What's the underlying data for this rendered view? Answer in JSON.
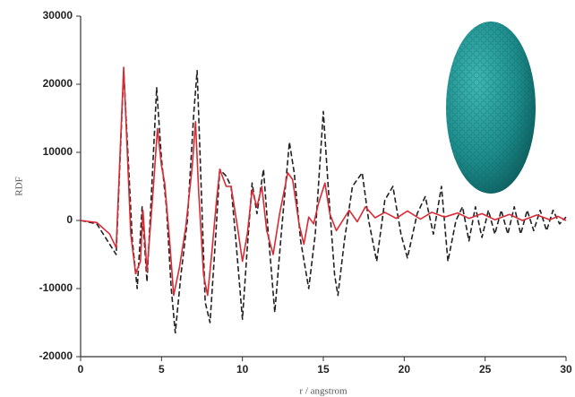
{
  "chart_data": {
    "type": "line",
    "y_label": "RDF",
    "x_label": "r / angstrom",
    "xlim": [
      0,
      30
    ],
    "xticks": [
      0,
      5,
      10,
      15,
      20,
      25,
      30
    ],
    "ylim": [
      -20000,
      30000
    ],
    "yticks": [
      -20000,
      -10000,
      0,
      10000,
      20000,
      30000
    ],
    "series": [
      {
        "color": "#222222",
        "dash": true,
        "x": [
          0,
          1,
          1.8,
          2.2,
          2.66,
          3.2,
          3.5,
          3.8,
          4.1,
          4.4,
          4.7,
          5.0,
          5.3,
          5.6,
          5.85,
          6.2,
          6.6,
          7.0,
          7.2,
          7.45,
          7.7,
          8.0,
          8.3,
          8.6,
          9.0,
          9.3,
          9.6,
          10.0,
          10.3,
          10.6,
          10.9,
          11.3,
          11.6,
          12.0,
          12.4,
          12.9,
          13.2,
          13.6,
          14.1,
          14.5,
          15.0,
          15.3,
          15.7,
          15.9,
          16.3,
          16.8,
          17.4,
          17.8,
          18.3,
          18.8,
          19.3,
          19.8,
          20.2,
          20.8,
          21.3,
          21.8,
          22.3,
          22.7,
          23.2,
          23.6,
          24,
          24.4,
          24.8,
          25.2,
          25.6,
          26,
          26.4,
          26.8,
          27.2,
          27.6,
          28,
          28.4,
          28.8,
          29.2,
          29.6,
          30
        ],
        "values": [
          0,
          -500,
          -3500,
          -5000,
          22000,
          -3000,
          -10000,
          2000,
          -9000,
          5000,
          19500,
          9000,
          2000,
          -10000,
          -16500,
          -8000,
          0,
          16000,
          22000,
          5000,
          -12000,
          -15000,
          -4000,
          7500,
          6500,
          5000,
          -3000,
          -14500,
          -4000,
          5500,
          1000,
          7500,
          -2000,
          -13500,
          -2000,
          11500,
          7000,
          -3000,
          -10000,
          -2000,
          16000,
          5000,
          -8000,
          -11000,
          -3000,
          5000,
          7000,
          0,
          -6000,
          3000,
          5000,
          -2000,
          -5500,
          1000,
          3500,
          -2000,
          5000,
          -6000,
          0,
          2000,
          -3000,
          2000,
          -2500,
          1500,
          -2000,
          1500,
          -2000,
          2000,
          -2000,
          1500,
          -1500,
          1500,
          -1500,
          1500,
          -500,
          500
        ]
      },
      {
        "color": "#d92b35",
        "dash": false,
        "x": [
          0,
          1,
          1.8,
          2.2,
          2.66,
          3.1,
          3.4,
          3.7,
          3.85,
          4.1,
          4.5,
          4.75,
          5.0,
          5.2,
          5.5,
          5.75,
          6.1,
          6.5,
          6.9,
          7.1,
          7.3,
          7.6,
          7.85,
          8.1,
          8.4,
          8.6,
          9.0,
          9.3,
          9.7,
          10.0,
          10.3,
          10.6,
          10.9,
          11.2,
          11.5,
          11.9,
          12.3,
          12.8,
          13.1,
          13.5,
          13.8,
          14.1,
          14.4,
          14.7,
          15.1,
          15.4,
          15.8,
          16.2,
          16.6,
          17.1,
          17.6,
          18.2,
          18.8,
          19.5,
          20.2,
          21,
          21.7,
          22.5,
          23.3,
          24,
          24.8,
          25.6,
          26.5,
          27.3,
          28.2,
          29,
          29.5,
          30
        ],
        "values": [
          0,
          -300,
          -2000,
          -4000,
          22500,
          -2000,
          -7800,
          -6000,
          1500,
          -7500,
          5000,
          13500,
          8000,
          5500,
          -3000,
          -11000,
          -7000,
          -1000,
          8000,
          14500,
          4000,
          -8000,
          -11000,
          -5000,
          3000,
          7500,
          5000,
          5000,
          -1000,
          -6000,
          -2000,
          4500,
          2000,
          5000,
          -1500,
          -5000,
          1000,
          7000,
          6000,
          -500,
          -3500,
          500,
          -500,
          2500,
          5500,
          1000,
          -1500,
          0,
          1500,
          -200,
          2000,
          400,
          1200,
          300,
          1400,
          200,
          1200,
          500,
          1100,
          300,
          1000,
          100,
          900,
          0,
          800,
          100,
          600,
          0
        ]
      }
    ]
  }
}
